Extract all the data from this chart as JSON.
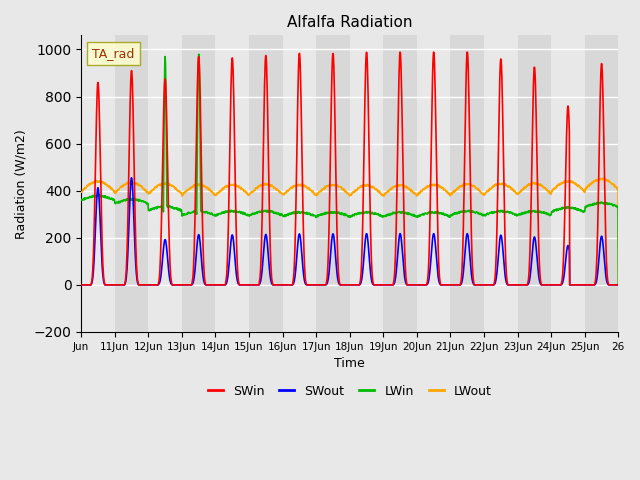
{
  "title": "Alfalfa Radiation",
  "xlabel": "Time",
  "ylabel": "Radiation (W/m2)",
  "ylim": [
    -200,
    1060
  ],
  "legend_label": "TA_rad",
  "series_colors": {
    "SWin": "#ff0000",
    "SWout": "#0000ff",
    "LWin": "#00bb00",
    "LWout": "#ffa500"
  },
  "background_color": "#e8e8e8",
  "plot_bg_color": "#d8d8d8",
  "stripe_color": "#e8e8e8",
  "grid_color": "#ffffff",
  "tick_labels": [
    "Jun",
    "11Jun",
    "12Jun",
    "13Jun",
    "14Jun",
    "15Jun",
    "16Jun",
    "17Jun",
    "18Jun",
    "19Jun",
    "20Jun",
    "21Jun",
    "22Jun",
    "23Jun",
    "24Jun",
    "25Jun",
    "26"
  ],
  "n_days": 16,
  "start_day": 10,
  "points_per_day": 96
}
